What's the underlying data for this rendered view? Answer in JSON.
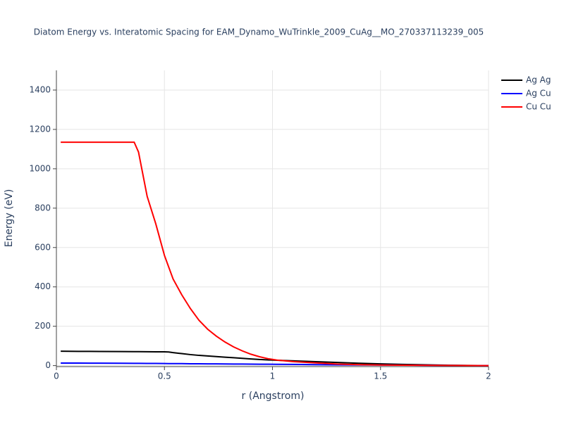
{
  "chart_data": {
    "type": "line",
    "title": "Diatom Energy vs. Interatomic Spacing for EAM_Dynamo_WuTrinkle_2009_CuAg__MO_270337113239_005",
    "x_label": "r (Angstrom)",
    "y_label": "Energy (eV)",
    "x": [
      0.02,
      0.1,
      0.2,
      0.3,
      0.36,
      0.38,
      0.42,
      0.46,
      0.5,
      0.52,
      0.54,
      0.58,
      0.62,
      0.66,
      0.7,
      0.74,
      0.78,
      0.82,
      0.86,
      0.9,
      0.94,
      0.98,
      1.02,
      1.1,
      1.2,
      1.3,
      1.4,
      1.5,
      1.6,
      1.8,
      2.0
    ],
    "series": [
      {
        "name": "Ag Ag",
        "color": "#000000",
        "values": [
          73,
          72.5,
          72,
          71.5,
          71,
          71,
          70.5,
          70,
          70,
          69,
          66,
          61,
          56,
          52,
          49,
          46,
          43,
          40,
          37,
          34,
          31,
          29,
          27,
          24,
          20,
          16,
          12,
          9,
          6,
          2,
          0
        ]
      },
      {
        "name": "Ag Cu",
        "color": "#0000ff",
        "values": [
          13,
          12.8,
          12.5,
          12,
          11.5,
          11.4,
          11.2,
          11,
          10.5,
          10.4,
          10.2,
          10,
          9.5,
          9.2,
          9,
          8.7,
          8.4,
          8.1,
          7.8,
          7.5,
          7.2,
          6.9,
          6.6,
          6,
          5,
          4,
          3.5,
          3,
          2.5,
          1,
          0
        ]
      },
      {
        "name": "Cu Cu",
        "color": "#ff0000",
        "values": [
          1135,
          1135,
          1135,
          1135,
          1135,
          1085,
          860,
          720,
          560,
          500,
          440,
          360,
          290,
          230,
          185,
          150,
          120,
          95,
          75,
          58,
          45,
          35,
          28,
          20,
          14,
          8,
          5,
          3,
          2,
          1,
          0
        ]
      }
    ],
    "xlim": [
      0,
      2
    ],
    "ylim": [
      -5,
      1500
    ],
    "xticks": [
      0,
      0.5,
      1,
      1.5,
      2
    ],
    "yticks": [
      0,
      200,
      400,
      600,
      800,
      1000,
      1200,
      1400
    ],
    "grid": true,
    "legend": "right"
  }
}
